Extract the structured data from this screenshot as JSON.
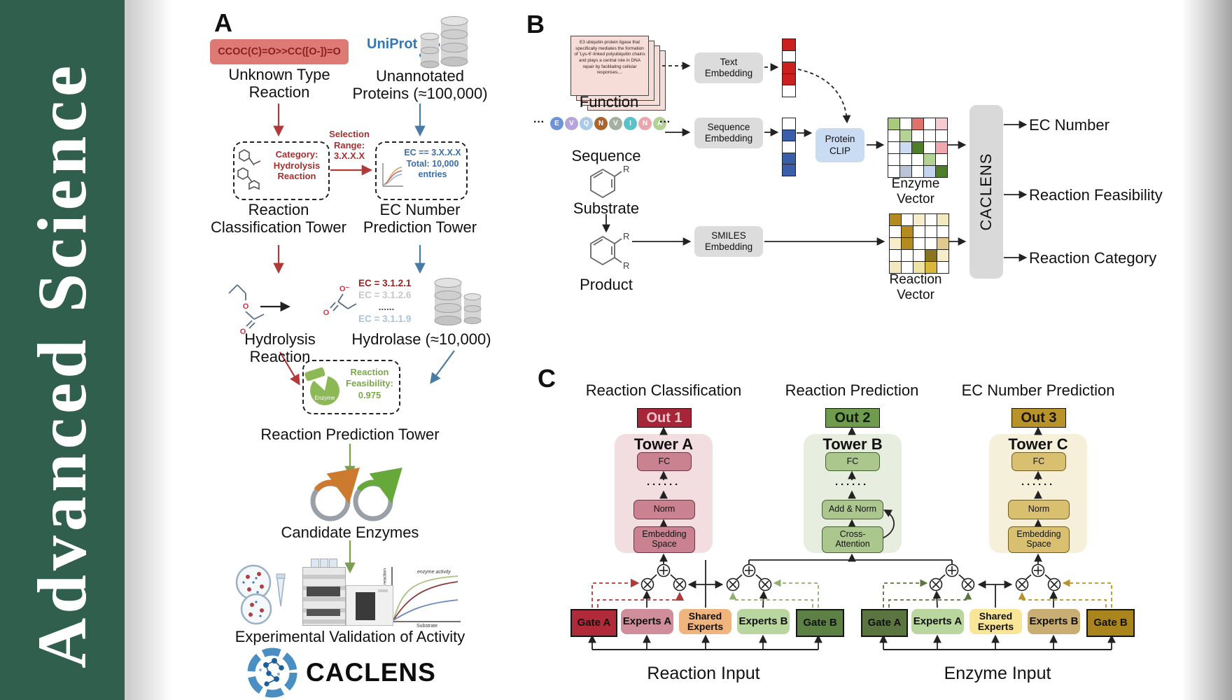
{
  "sidebar": {
    "word_top": "Science",
    "word_bottom": "Advanced"
  },
  "panelA": {
    "label": "A",
    "smiles": "CCOC(C)=O>>CC([O-])=O",
    "unknown_reaction": "Unknown Type\nReaction",
    "uniprot": "UniProt",
    "unannotated": "Unannotated\nProteins (≈100,000)",
    "category_box": "Category:\nHydrolysis\nReaction",
    "selection": "Selection\nRange:\n3.X.X.X",
    "ec_box": "EC == 3.X.X.X\nTotal: 10,000\nentries",
    "classification_tower": "Reaction\nClassification Tower",
    "prediction_tower": "EC Number\nPrediction Tower",
    "ec_list": [
      {
        "text": "EC = 3.1.2.1",
        "color": "#9b1f1f"
      },
      {
        "text": "EC = 3.1.2.6",
        "color": "#c6c6c6"
      },
      {
        "text": "......",
        "color": "#4a4a4a"
      },
      {
        "text": "EC = 3.1.1.9",
        "color": "#a9c3dd"
      }
    ],
    "hydrolysis": "Hydrolysis Reaction",
    "hydrolase": "Hydrolase (≈10,000)",
    "enzyme_blob": "Enzyme",
    "feasibility": "Reaction\nFeasibility:\n0.975",
    "reaction_tower": "Reaction Prediction Tower",
    "candidates": "Candidate Enzymes",
    "graph": {
      "title": "enzyme activity",
      "xlabel": "Substrate",
      "ylabel": "Rate of reaction"
    },
    "validation": "Experimental Validation of Activity",
    "brand": "CACLENS",
    "atoms": {
      "o": "O",
      "o_minus": "O⁻"
    }
  },
  "panelB": {
    "label": "B",
    "function_card": "E3 ubiquitin-protein ligase that specifically mediates the formation of 'Lys-6'-linked polyubiquitin chains and plays a central role in DNA repair by facilitating cellular responses....",
    "function_label": "Function",
    "sequence_label": "Sequence",
    "ellipsis": "···",
    "residues": [
      {
        "letter": "E",
        "color": "#6e93d6"
      },
      {
        "letter": "V",
        "color": "#b5a5da"
      },
      {
        "letter": "Q",
        "color": "#a9cbe8"
      },
      {
        "letter": "N",
        "color": "#a9642c"
      },
      {
        "letter": "V",
        "color": "#a3b0a0"
      },
      {
        "letter": "I",
        "color": "#59c2cb"
      },
      {
        "letter": "N",
        "color": "#eaa6ad"
      },
      {
        "letter": "A",
        "color": "#b0d295"
      }
    ],
    "substrate_label": "Substrate",
    "product_label": "Product",
    "r_label": "R",
    "text_embedding": "Text\nEmbedding",
    "sequence_embedding": "Sequence\nEmbedding",
    "smiles_embedding": "SMILES\nEmbedding",
    "protein_clip": "Protein\nCLIP",
    "text_vector": [
      "#cc1f1f",
      "#ffffff",
      "#cc1f1f",
      "#cc1f1f",
      "#ffffff"
    ],
    "sequence_vector": [
      "#ffffff",
      "#3a5fa8",
      "#ffffff",
      "#3a5fa8",
      "#3a5fa8"
    ],
    "enzyme_vector": {
      "label": "Enzyme Vector",
      "cells": [
        [
          "#a9c97e",
          "#ffffff",
          "#e0716b",
          "#ffffff",
          "#f6ccd2"
        ],
        [
          "#ffffff",
          "#b4d294",
          "#ffffff",
          "#ffffff",
          "#ffffff"
        ],
        [
          "#ffffff",
          "#ccdcf0",
          "#4e7e2a",
          "#ffffff",
          "#efa9ae"
        ],
        [
          "#ffffff",
          "#ffffff",
          "#ffffff",
          "#b4d294",
          "#ffffff"
        ],
        [
          "#ffffff",
          "#b9c4d6",
          "#ffffff",
          "#c3d6ee",
          "#4e7e2a"
        ]
      ]
    },
    "reaction_vector": {
      "label": "Reaction Vector",
      "cells": [
        [
          "#b38b21",
          "#ffffff",
          "#f6eecb",
          "#ffffff",
          "#f3e9c0"
        ],
        [
          "#ffffff",
          "#b38b21",
          "#ffffff",
          "#ffffff",
          "#ffffff"
        ],
        [
          "#f6eecb",
          "#b38b21",
          "#ffffff",
          "#ffffff",
          "#dfc98e"
        ],
        [
          "#ffffff",
          "#ffffff",
          "#ffffff",
          "#8a7420",
          "#f6eecb"
        ],
        [
          "#f3e9c0",
          "#ffffff",
          "#f0e3a6",
          "#d8b83a",
          "#ffffff"
        ]
      ]
    },
    "caclens": "CACLENS",
    "outputs": [
      "EC Number",
      "Reaction Feasibility",
      "Reaction Category"
    ]
  },
  "panelC": {
    "label": "C",
    "columns": [
      {
        "title": "Reaction Classification",
        "out": "Out 1",
        "out_bg": "#a52639",
        "out_fg": "#f2c4cc",
        "tower": "Tower A",
        "tower_bg": "#f2dee1",
        "box_bg": "#ca8290",
        "box_border": "#6b3540",
        "fc": "FC",
        "dots": "······",
        "mid": "Norm",
        "bottom": "Embedding\nSpace"
      },
      {
        "title": "Reaction Prediction",
        "out": "Out 2",
        "out_bg": "#6f9b4e",
        "out_fg": "#101c0a",
        "tower": "Tower B",
        "tower_bg": "#e7eddf",
        "box_bg": "#abc78d",
        "box_border": "#446030",
        "fc": "FC",
        "dots": "······",
        "mid": "Add & Norm",
        "bottom": "Cross-\nAttention"
      },
      {
        "title": "EC Number Prediction",
        "out": "Out 3",
        "out_bg": "#b8932a",
        "out_fg": "#1a1508",
        "tower": "Tower C",
        "tower_bg": "#f6f0db",
        "box_bg": "#d9c071",
        "box_border": "#6e5c1e",
        "fc": "FC",
        "dots": "······",
        "mid": "Norm",
        "bottom": "Embedding\nSpace"
      }
    ],
    "groups": [
      {
        "input": "Reaction Input",
        "boxes": [
          {
            "label": "Gate A",
            "bg": "#b02a3a",
            "gate": true
          },
          {
            "label": "Experts A",
            "bg": "#cf8e99"
          },
          {
            "label": "Shared\nExperts",
            "bg": "#f0b47e"
          },
          {
            "label": "Experts B",
            "bg": "#b9d69e"
          },
          {
            "label": "Gate B",
            "bg": "#5d8044",
            "gate": true
          }
        ]
      },
      {
        "input": "Enzyme Input",
        "boxes": [
          {
            "label": "Gate A",
            "bg": "#5a7540",
            "gate": true
          },
          {
            "label": "Experts A",
            "bg": "#b9d69e"
          },
          {
            "label": "Shared\nExperts",
            "bg": "#f8e596"
          },
          {
            "label": "Experts B",
            "bg": "#c9ae73"
          },
          {
            "label": "Gate B",
            "bg": "#aa851d",
            "gate": true
          }
        ]
      }
    ]
  }
}
